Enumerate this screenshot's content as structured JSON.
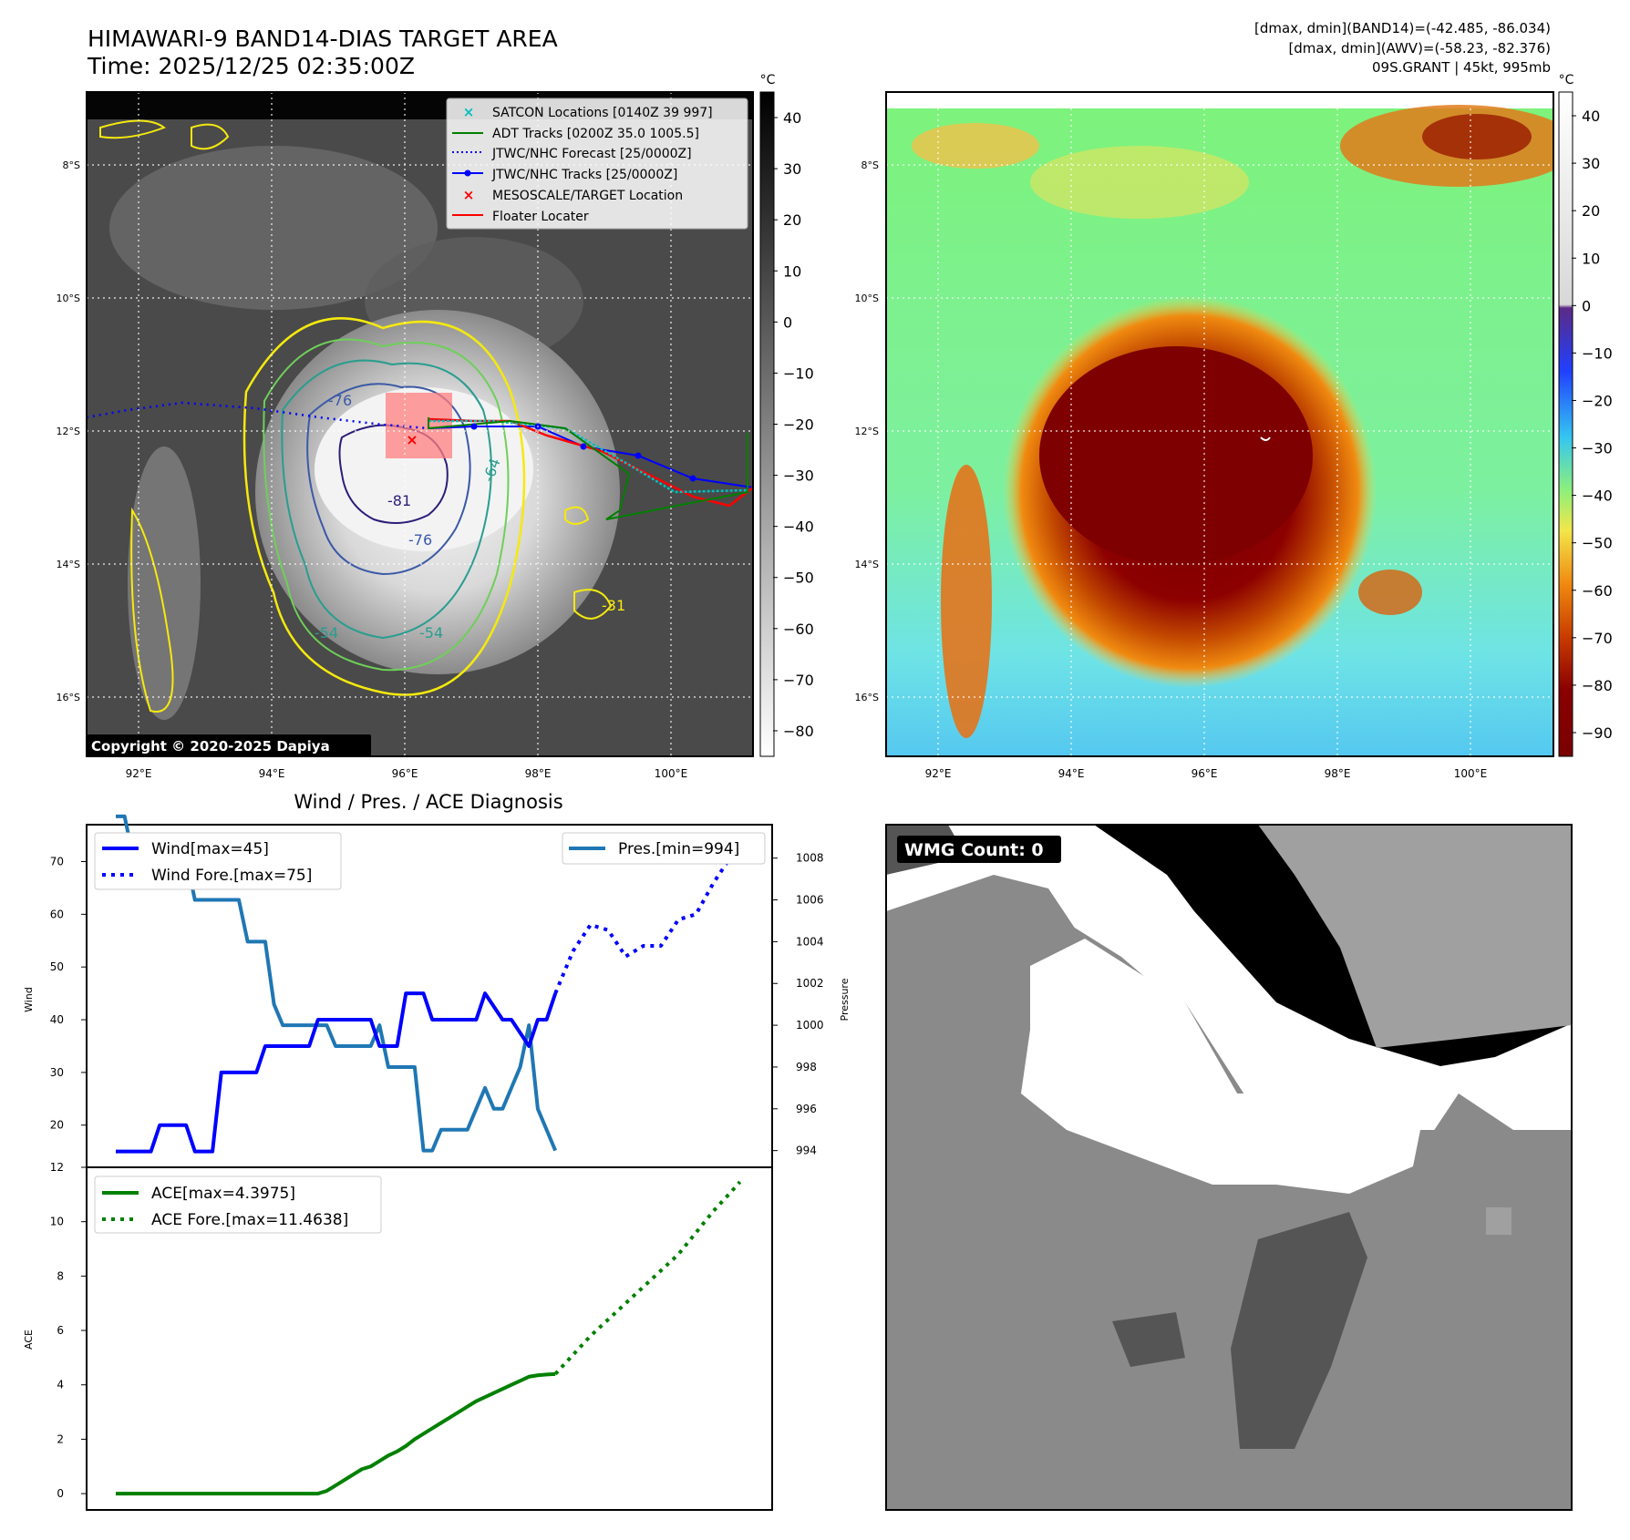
{
  "header": {
    "title_line1": "HIMAWARI-9 BAND14-DIAS TARGET AREA",
    "title_line2": "Time: 2025/12/25 02:35:00Z",
    "info_line1": "[dmax, dmin](BAND14)=(-42.485, -86.034)",
    "info_line2": "[dmax, dmin](AWV)=(-58.23, -82.376)",
    "info_line3": "09S.GRANT | 45kt, 995mb"
  },
  "map_axes": {
    "lat_labels": [
      "8°S",
      "10°S",
      "12°S",
      "14°S",
      "16°S"
    ],
    "lon_labels": [
      "92°E",
      "94°E",
      "96°E",
      "98°E",
      "100°E"
    ]
  },
  "colorbar_gray": {
    "unit": "°C",
    "ticks": [
      "40",
      "30",
      "20",
      "10",
      "0",
      "−10",
      "−20",
      "−30",
      "−40",
      "−50",
      "−60",
      "−70",
      "−80"
    ]
  },
  "colorbar_color": {
    "unit": "°C",
    "ticks": [
      "40",
      "30",
      "20",
      "10",
      "0",
      "−10",
      "−20",
      "−30",
      "−40",
      "−50",
      "−60",
      "−70",
      "−80",
      "−90"
    ]
  },
  "map_legend": {
    "items": [
      {
        "label": "SATCON Locations [0140Z 39 997]",
        "color": "#00bfbf"
      },
      {
        "label": "ADT Tracks [0200Z 35.0 1005.5]",
        "color": "#008000"
      },
      {
        "label": "JTWC/NHC Forecast [25/0000Z]",
        "color": "#0000ff"
      },
      {
        "label": "JTWC/NHC Tracks [25/0000Z]",
        "color": "#0000ff"
      },
      {
        "label": "MESOSCALE/TARGET Location",
        "color": "#ff0000"
      },
      {
        "label": "Floater Locater",
        "color": "#ff0000"
      }
    ]
  },
  "contour_labels": [
    "-76",
    "-76",
    "-81",
    "-64",
    "-54",
    "-54",
    "-31"
  ],
  "copyright": "Copyright © 2020-2025 Dapiya",
  "wmg": {
    "label": "WMG Count: 0"
  },
  "colors": {
    "wind": "#0000ff",
    "pressure": "#1f77b4",
    "ace": "#008000",
    "satcon": "#00bfbf",
    "adt": "#008000",
    "target": "#ff0000"
  },
  "chart_data": [
    {
      "type": "line",
      "title": "Wind / Pres. / ACE Diagnosis",
      "xlabel": "",
      "ylabel": "Wind",
      "y2label": "Pressure",
      "ylim": [
        12,
        77
      ],
      "y2lim": [
        993.2,
        1009.6
      ],
      "yticks": [
        20,
        30,
        40,
        50,
        60,
        70
      ],
      "y2ticks": [
        994,
        996,
        998,
        1000,
        1002,
        1004,
        1006,
        1008
      ],
      "x_index": "6-hourly observation index (0..50 observed, 50..71 forecast)",
      "legend": [
        "Wind[max=45]",
        "Wind Fore.[max=75]",
        "Pres.[min=994]"
      ],
      "series": [
        {
          "name": "Wind[max=45]",
          "axis": "left",
          "style": "solid",
          "x": [
            0,
            4,
            5,
            8,
            9,
            11,
            12,
            16,
            17,
            22,
            23,
            29,
            30,
            32,
            33,
            35,
            36,
            37,
            38,
            41,
            42,
            44,
            45,
            47,
            48,
            49,
            50
          ],
          "values": [
            15,
            15,
            20,
            20,
            15,
            15,
            30,
            30,
            35,
            35,
            40,
            40,
            35,
            35,
            45,
            45,
            40,
            40,
            40,
            40,
            45,
            40,
            40,
            35,
            40,
            40,
            45
          ]
        },
        {
          "name": "Wind Fore.[max=75]",
          "axis": "left",
          "style": "dotted",
          "x": [
            50,
            52,
            54,
            56,
            58,
            60,
            62,
            64,
            66,
            68,
            70,
            71
          ],
          "values": [
            45,
            53,
            58,
            57,
            52,
            54,
            54,
            59,
            60,
            66,
            71,
            75
          ]
        },
        {
          "name": "Pres.[min=994]",
          "axis": "right",
          "style": "solid",
          "x": [
            0,
            1,
            2,
            3,
            4,
            5,
            6,
            7,
            8,
            9,
            10,
            11,
            12,
            13,
            14,
            15,
            16,
            17,
            18,
            19,
            20,
            21,
            22,
            23,
            24,
            25,
            26,
            27,
            28,
            29,
            30,
            31,
            32,
            33,
            34,
            35,
            36,
            37,
            38,
            39,
            40,
            41,
            42,
            43,
            44,
            45,
            46,
            47,
            48,
            49,
            50
          ],
          "values": [
            1010,
            1010,
            1008,
            1008,
            1008,
            1008,
            1008,
            1008,
            1008,
            1006,
            1006,
            1006,
            1006,
            1006,
            1006,
            1004,
            1004,
            1004,
            1001,
            1000,
            1000,
            1000,
            1000,
            1000,
            1000,
            999,
            999,
            999,
            999,
            999,
            1000,
            998,
            998,
            998,
            998,
            994,
            994,
            995,
            995,
            995,
            995,
            996,
            997,
            996,
            996,
            997,
            998,
            1000,
            996,
            995,
            994
          ]
        }
      ]
    },
    {
      "type": "line",
      "ylabel": "ACE",
      "ylim": [
        -0.6,
        12
      ],
      "yticks": [
        0,
        2,
        4,
        6,
        8,
        10,
        12
      ],
      "legend": [
        "ACE[max=4.3975]",
        "ACE Fore.[max=11.4638]"
      ],
      "series": [
        {
          "name": "ACE[max=4.3975]",
          "style": "solid",
          "x": [
            0,
            10,
            20,
            21,
            22,
            23,
            24,
            25,
            26,
            27,
            28,
            29,
            30,
            31,
            32,
            33,
            34,
            35,
            36,
            37,
            38,
            39,
            40,
            41,
            42,
            43,
            44,
            45,
            46,
            47,
            48,
            49,
            50
          ],
          "values": [
            0,
            0,
            0,
            0,
            0,
            0,
            0.1,
            0.3,
            0.5,
            0.7,
            0.9,
            1.0,
            1.2,
            1.4,
            1.55,
            1.75,
            2.0,
            2.2,
            2.4,
            2.6,
            2.8,
            3.0,
            3.2,
            3.4,
            3.55,
            3.7,
            3.85,
            4.0,
            4.15,
            4.3,
            4.35,
            4.38,
            4.3975
          ]
        },
        {
          "name": "ACE Fore.[max=11.4638]",
          "style": "dotted",
          "x": [
            50,
            52,
            54,
            56,
            58,
            60,
            62,
            64,
            66,
            68,
            70,
            71
          ],
          "values": [
            4.4,
            5.1,
            5.8,
            6.4,
            7.0,
            7.6,
            8.2,
            8.8,
            9.6,
            10.4,
            11.1,
            11.4638
          ]
        }
      ]
    }
  ]
}
